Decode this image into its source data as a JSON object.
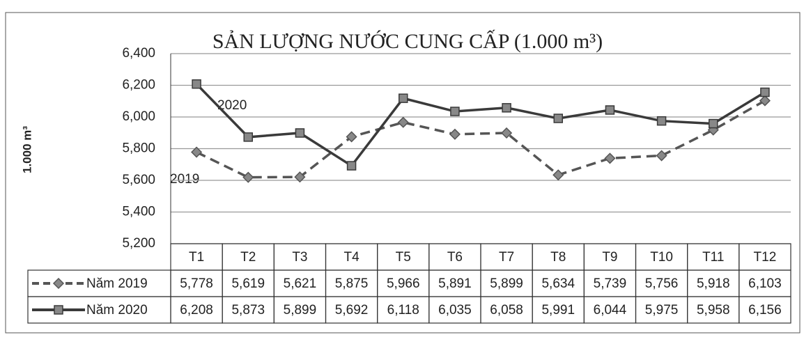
{
  "chart_data": {
    "type": "line",
    "title": "SẢN LƯỢNG NƯỚC CUNG CẤP (1.000 m³)",
    "y_label": "1.000 m³",
    "categories": [
      "T1",
      "T2",
      "T3",
      "T4",
      "T5",
      "T6",
      "T7",
      "T8",
      "T9",
      "T10",
      "T11",
      "T12"
    ],
    "series": [
      {
        "name": "Năm 2019",
        "color": "#555555",
        "line_style": "dashed",
        "marker": "diamond",
        "values": [
          5778,
          5619,
          5621,
          5875,
          5966,
          5891,
          5899,
          5634,
          5739,
          5756,
          5918,
          6103
        ],
        "value_labels": [
          "5,778",
          "5,619",
          "5,621",
          "5,875",
          "5,966",
          "5,891",
          "5,899",
          "5,634",
          "5,739",
          "5,756",
          "5,918",
          "6,103"
        ]
      },
      {
        "name": "Năm 2020",
        "color": "#3a3a3a",
        "line_style": "solid",
        "marker": "square",
        "values": [
          6208,
          5873,
          5899,
          5692,
          6118,
          6035,
          6058,
          5991,
          6044,
          5975,
          5958,
          6156
        ],
        "value_labels": [
          "6,208",
          "5,873",
          "5,899",
          "5,692",
          "6,118",
          "6,035",
          "6,058",
          "5,991",
          "6,044",
          "5,975",
          "5,958",
          "6,156"
        ]
      }
    ],
    "annotations": [
      "2020",
      "2019"
    ],
    "ylim": [
      5200,
      6400
    ],
    "yticks": [
      {
        "value": 5200,
        "label": "5,200"
      },
      {
        "value": 5400,
        "label": "5,400"
      },
      {
        "value": 5600,
        "label": "5,600"
      },
      {
        "value": 5800,
        "label": "5,800"
      },
      {
        "value": 6000,
        "label": "6,000"
      },
      {
        "value": 6200,
        "label": "6,200"
      },
      {
        "value": 6400,
        "label": "6,400"
      }
    ],
    "grid": true
  }
}
